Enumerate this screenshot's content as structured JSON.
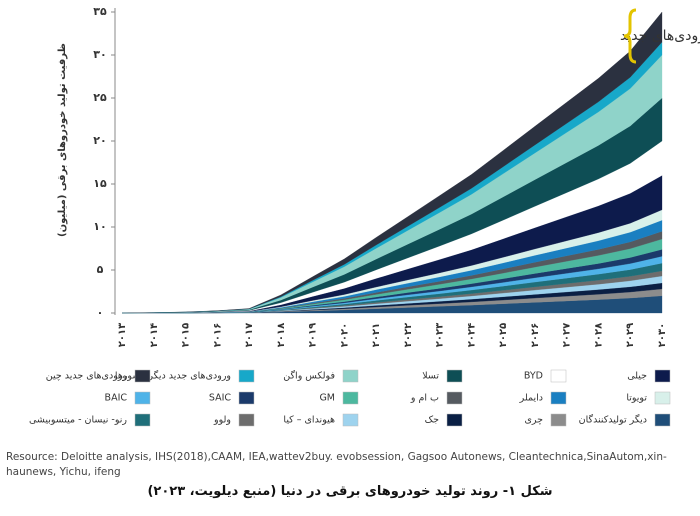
{
  "chart_data": {
    "type": "stacked-area",
    "y_label": "ظرفیت تولید خودروهای برقی (میلیون)",
    "annotation": "ورودی‌های جدید",
    "categories": [
      "۲۰۱۳",
      "۲۰۱۴",
      "۲۰۱۵",
      "۲۰۱۶",
      "۲۰۱۷",
      "۲۰۱۸",
      "۲۰۱۹",
      "۲۰۲۰",
      "۲۰۲۱",
      "۲۰۲۲",
      "۲۰۲۳",
      "۲۰۲۴",
      "۲۰۲۵",
      "۲۰۲۶",
      "۲۰۲۷",
      "۲۰۲۸",
      "۲۰۲۹",
      "۲۰۳۰"
    ],
    "ylim": [
      0,
      35
    ],
    "yticks": [
      {
        "value": 0,
        "label": "۰"
      },
      {
        "value": 5,
        "label": "۵"
      },
      {
        "value": 10,
        "label": "۱۰"
      },
      {
        "value": 15,
        "label": "۱۵"
      },
      {
        "value": 20,
        "label": "۲۰"
      },
      {
        "value": 25,
        "label": "۲۵"
      },
      {
        "value": 30,
        "label": "۳۰"
      },
      {
        "value": 35,
        "label": "۳۵"
      }
    ],
    "series": [
      {
        "name": "دیگر تولیدکنندگان",
        "color": "#1f4e79",
        "values": [
          0,
          0,
          0.01,
          0.01,
          0.03,
          0.12,
          0.24,
          0.36,
          0.5,
          0.64,
          0.78,
          0.92,
          1.08,
          1.24,
          1.4,
          1.56,
          1.74,
          2
        ]
      },
      {
        "name": "چری",
        "color": "#8c8c8c",
        "values": [
          0,
          0,
          0,
          0.01,
          0.01,
          0.05,
          0.1,
          0.14,
          0.2,
          0.26,
          0.31,
          0.37,
          0.43,
          0.5,
          0.56,
          0.62,
          0.7,
          0.8
        ]
      },
      {
        "name": "جک",
        "color": "#0a1f44",
        "values": [
          0,
          0,
          0,
          0,
          0.01,
          0.04,
          0.08,
          0.13,
          0.18,
          0.22,
          0.27,
          0.32,
          0.38,
          0.43,
          0.49,
          0.55,
          0.61,
          0.7
        ]
      },
      {
        "name": "هیوندای – کیا",
        "color": "#9ed3ee",
        "values": [
          0,
          0,
          0,
          0.01,
          0.01,
          0.05,
          0.1,
          0.14,
          0.2,
          0.26,
          0.31,
          0.37,
          0.43,
          0.5,
          0.56,
          0.62,
          0.7,
          0.8
        ]
      },
      {
        "name": "ولوو",
        "color": "#6d6d6d",
        "values": [
          0,
          0,
          0,
          0,
          0.01,
          0.04,
          0.07,
          0.11,
          0.15,
          0.19,
          0.23,
          0.28,
          0.32,
          0.37,
          0.42,
          0.47,
          0.52,
          0.6
        ]
      },
      {
        "name": "رنو- نیسان - میتسوبیشی",
        "color": "#1f6f7a",
        "values": [
          0,
          0,
          0,
          0.01,
          0.01,
          0.05,
          0.11,
          0.16,
          0.23,
          0.29,
          0.35,
          0.41,
          0.49,
          0.56,
          0.63,
          0.7,
          0.78,
          0.9
        ]
      },
      {
        "name": "BAIC",
        "color": "#4fb3e8",
        "values": [
          0,
          0,
          0,
          0.01,
          0.01,
          0.05,
          0.1,
          0.14,
          0.2,
          0.26,
          0.31,
          0.37,
          0.43,
          0.5,
          0.56,
          0.62,
          0.7,
          0.8
        ]
      },
      {
        "name": "SAIC",
        "color": "#1b3a6b",
        "values": [
          0,
          0,
          0,
          0.01,
          0.01,
          0.05,
          0.1,
          0.14,
          0.2,
          0.26,
          0.31,
          0.37,
          0.43,
          0.5,
          0.56,
          0.62,
          0.7,
          0.8
        ]
      },
      {
        "name": "GM",
        "color": "#4db89f",
        "values": [
          0,
          0,
          0,
          0.01,
          0.02,
          0.07,
          0.14,
          0.22,
          0.3,
          0.38,
          0.47,
          0.55,
          0.65,
          0.74,
          0.84,
          0.94,
          1.04,
          1.2
        ]
      },
      {
        "name": "ب ام و",
        "color": "#555a60",
        "values": [
          0,
          0,
          0,
          0.01,
          0.01,
          0.05,
          0.11,
          0.16,
          0.23,
          0.29,
          0.35,
          0.41,
          0.49,
          0.56,
          0.63,
          0.7,
          0.78,
          0.9
        ]
      },
      {
        "name": "دایملر",
        "color": "#1a7fc1",
        "values": [
          0,
          0,
          0.01,
          0.01,
          0.02,
          0.08,
          0.16,
          0.23,
          0.33,
          0.42,
          0.51,
          0.6,
          0.7,
          0.81,
          0.91,
          1.01,
          1.13,
          1.3
        ]
      },
      {
        "name": "تویوتا",
        "color": "#d8f0ea",
        "values": [
          0,
          0,
          0,
          0.01,
          0.02,
          0.07,
          0.14,
          0.22,
          0.3,
          0.38,
          0.47,
          0.55,
          0.65,
          0.74,
          0.84,
          0.94,
          1.04,
          1.2
        ]
      },
      {
        "name": "جیلی",
        "color": "#0d1b4c",
        "values": [
          0,
          0.01,
          0.02,
          0.03,
          0.06,
          0.24,
          0.48,
          0.72,
          1,
          1.28,
          1.56,
          1.84,
          2.16,
          2.48,
          2.8,
          3.12,
          3.48,
          4
        ]
      },
      {
        "name": "BYD",
        "color": "#ffffff",
        "values": [
          0,
          0.01,
          0.02,
          0.03,
          0.06,
          0.24,
          0.48,
          0.72,
          1,
          1.28,
          1.56,
          1.84,
          2.16,
          2.48,
          2.8,
          3.12,
          3.48,
          4
        ]
      },
      {
        "name": "تسلا",
        "color": "#0e4e55",
        "values": [
          0,
          0.01,
          0.02,
          0.04,
          0.08,
          0.3,
          0.6,
          0.9,
          1.25,
          1.6,
          1.95,
          2.3,
          2.7,
          3.1,
          3.5,
          3.9,
          4.35,
          5
        ]
      },
      {
        "name": "فولکس واگن",
        "color": "#8fd3c9",
        "values": [
          0,
          0.01,
          0.02,
          0.04,
          0.08,
          0.3,
          0.6,
          0.9,
          1.25,
          1.6,
          1.95,
          2.3,
          2.7,
          3.1,
          3.5,
          3.9,
          4.35,
          5
        ]
      },
      {
        "name": "ورودی‌های جدید دیگر کشورها",
        "color": "#17a8c9",
        "values": [
          0,
          0,
          0.01,
          0.01,
          0.02,
          0.09,
          0.18,
          0.27,
          0.38,
          0.48,
          0.59,
          0.69,
          0.81,
          0.93,
          1.05,
          1.17,
          1.31,
          1.5
        ]
      },
      {
        "name": "ورودی‌های جدید چین",
        "color": "#2b3140",
        "values": [
          0,
          0.01,
          0.01,
          0.02,
          0.05,
          0.21,
          0.42,
          0.63,
          0.88,
          1.12,
          1.37,
          1.61,
          1.89,
          2.17,
          2.45,
          2.73,
          3.05,
          3.5
        ]
      }
    ]
  },
  "source": "Resource: Deloitte analysis, IHS(2018),CAAM, IEA,wattev2buy. evobsession, Gagsoo Autonews, Cleantechnica,SinaAutom,xin-haunews, Yichu, ifeng",
  "caption": "شکل ۱- روند تولید خودروهای برقی در دنیا (منبع دیلویت، ۲۰۲۳)"
}
